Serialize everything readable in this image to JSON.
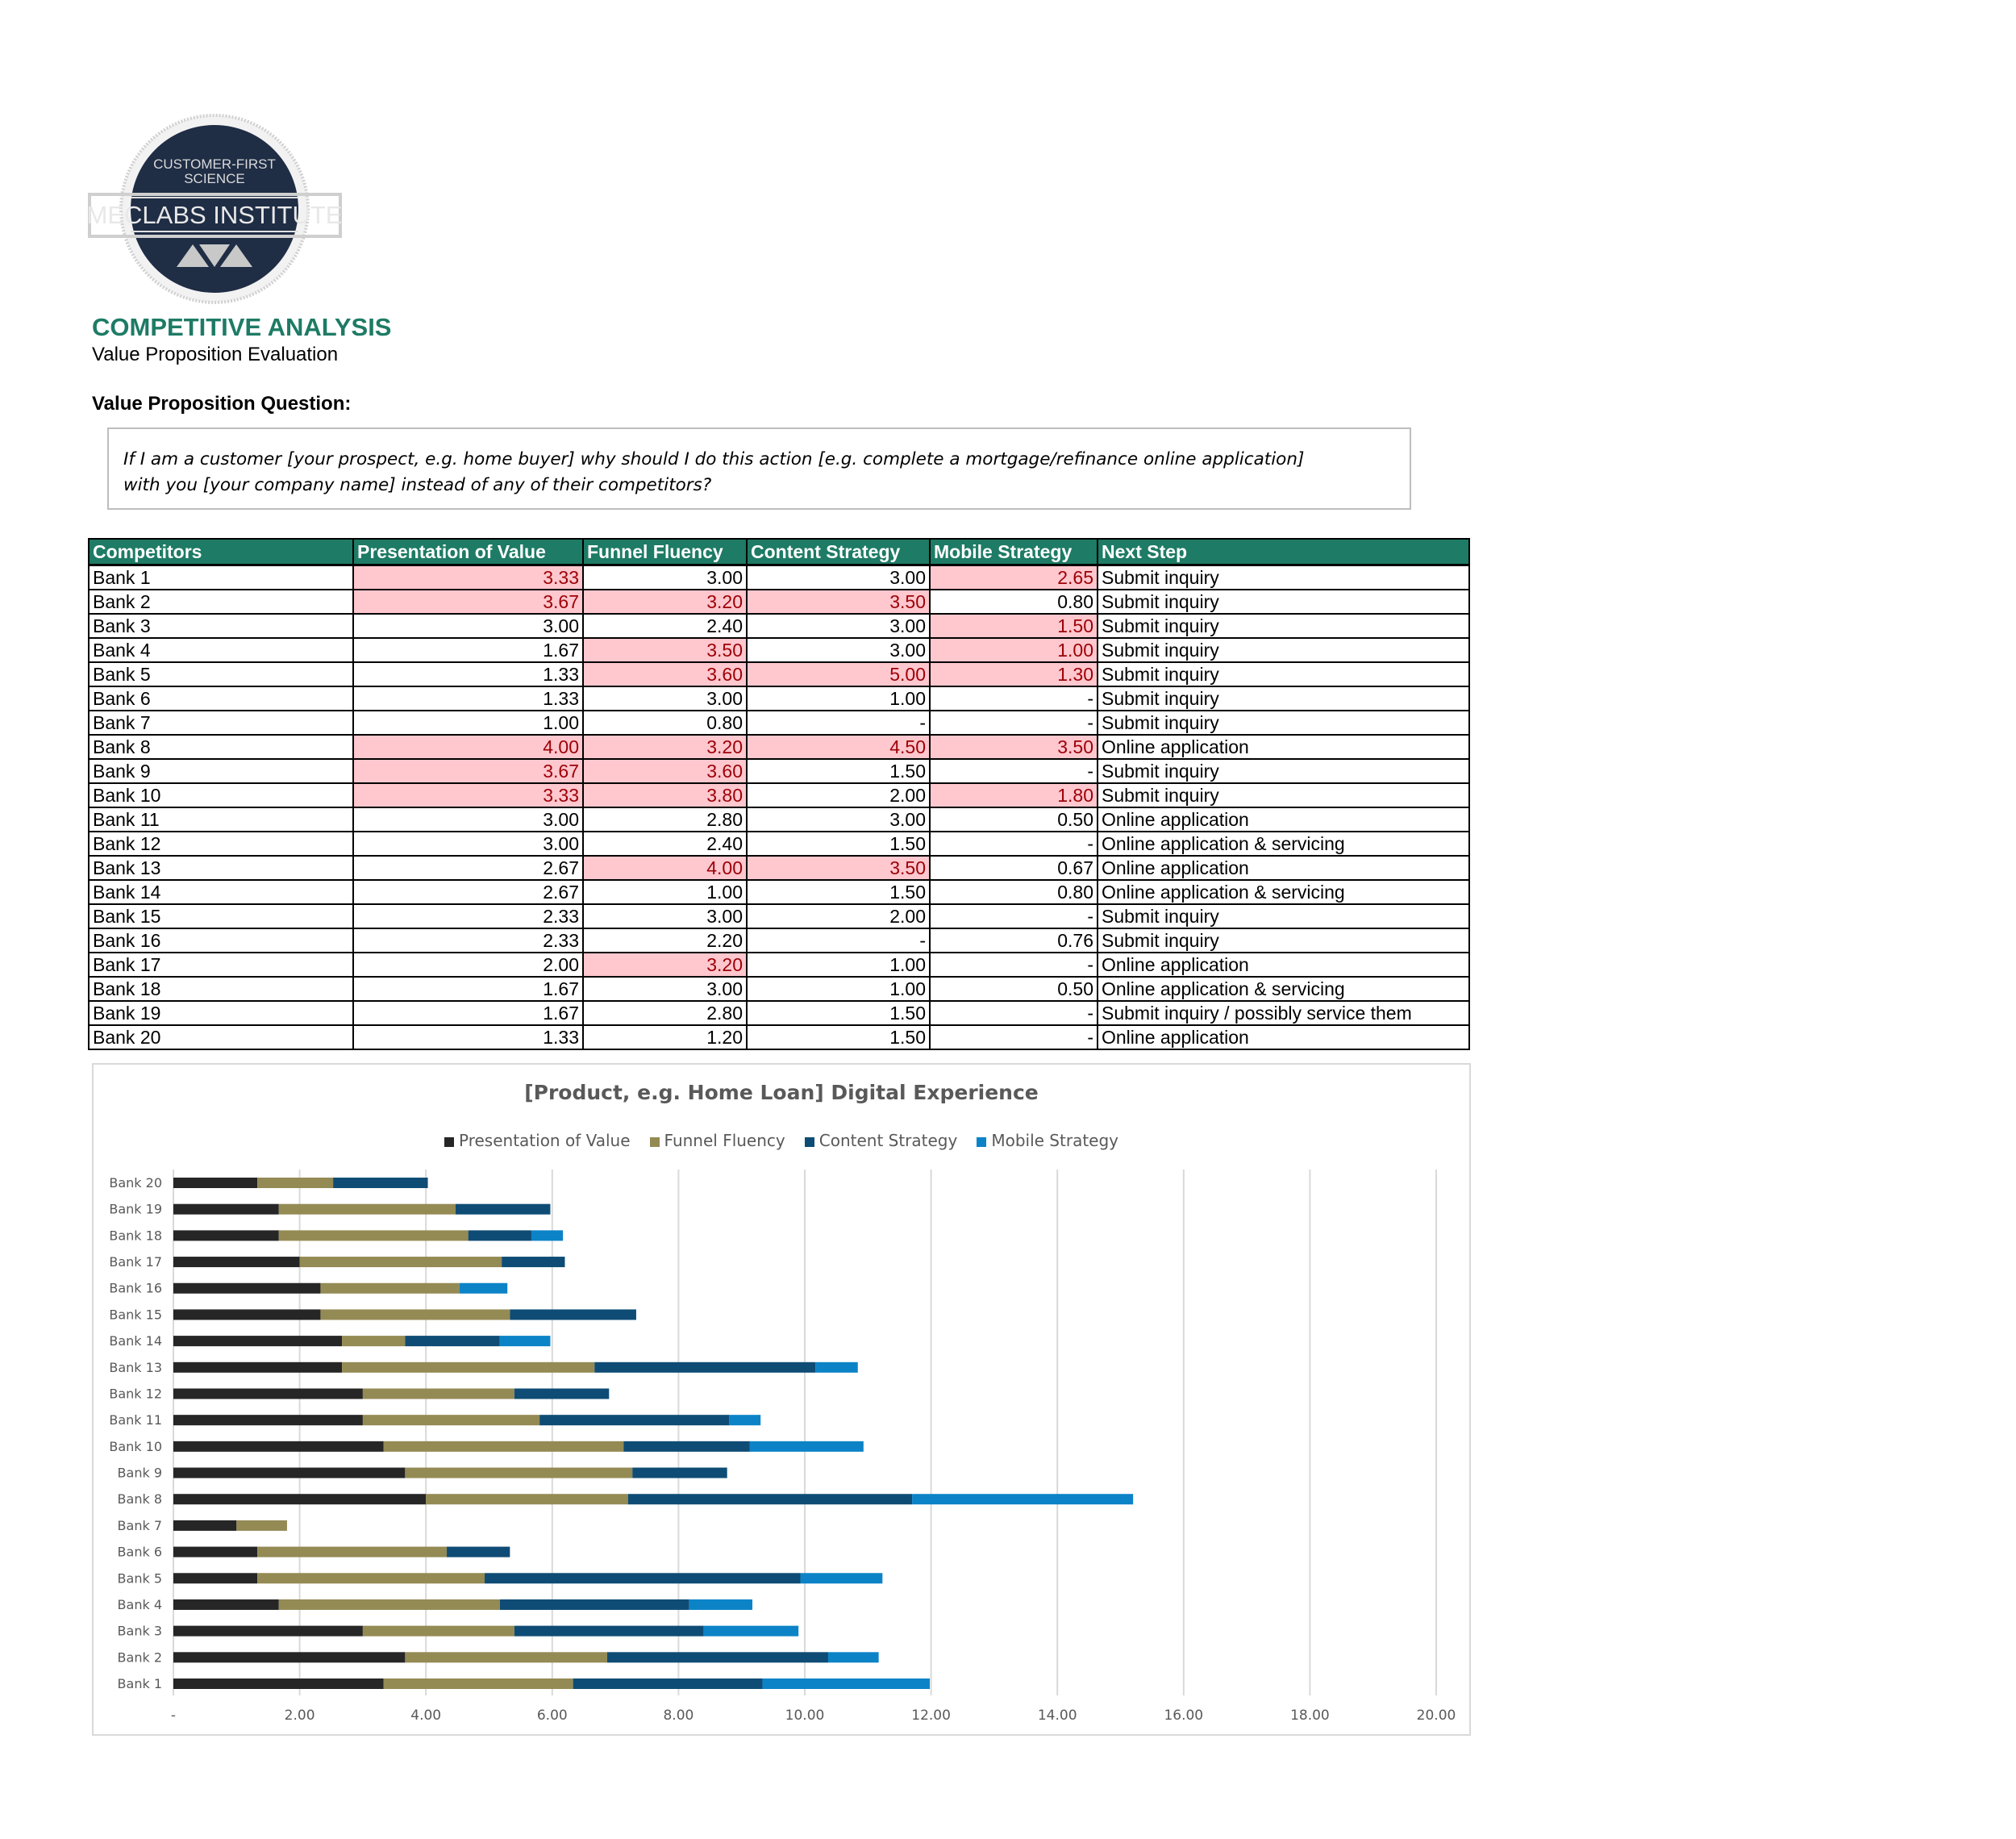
{
  "logo": {
    "line1": "CUSTOMER-FIRST",
    "line2": "SCIENCE",
    "name": "MECLABS INSTITUTE"
  },
  "header": {
    "title": "COMPETITIVE ANALYSIS",
    "subtitle": "Value Proposition Evaluation"
  },
  "question": {
    "label": "Value Proposition Question:",
    "line1": "If I am a customer [your prospect, e.g. home buyer] why should I do this action [e.g. complete a mortgage/refinance online application]",
    "line2": "with you [your company name] instead of any of their competitors?"
  },
  "table": {
    "columns": [
      "Competitors",
      "Presentation of Value",
      "Funnel Fluency",
      "Content Strategy",
      "Mobile Strategy",
      "Next Step"
    ],
    "highlight_color": "#FFC7CE",
    "highlight_text": "#9C0006",
    "header_color": "#1E7B65",
    "rows": [
      {
        "name": "Bank 1",
        "pv": "3.33",
        "ff": "3.00",
        "cs": "3.00",
        "ms": "2.65",
        "next": "Submit inquiry",
        "hl": [
          1,
          0,
          0,
          1
        ]
      },
      {
        "name": "Bank 2",
        "pv": "3.67",
        "ff": "3.20",
        "cs": "3.50",
        "ms": "0.80",
        "next": "Submit inquiry",
        "hl": [
          1,
          1,
          1,
          0
        ]
      },
      {
        "name": "Bank 3",
        "pv": "3.00",
        "ff": "2.40",
        "cs": "3.00",
        "ms": "1.50",
        "next": "Submit inquiry",
        "hl": [
          0,
          0,
          0,
          1
        ]
      },
      {
        "name": "Bank 4",
        "pv": "1.67",
        "ff": "3.50",
        "cs": "3.00",
        "ms": "1.00",
        "next": "Submit inquiry",
        "hl": [
          0,
          1,
          0,
          1
        ]
      },
      {
        "name": "Bank 5",
        "pv": "1.33",
        "ff": "3.60",
        "cs": "5.00",
        "ms": "1.30",
        "next": "Submit inquiry",
        "hl": [
          0,
          1,
          1,
          1
        ]
      },
      {
        "name": "Bank 6",
        "pv": "1.33",
        "ff": "3.00",
        "cs": "1.00",
        "ms": "-",
        "next": "Submit inquiry",
        "hl": [
          0,
          0,
          0,
          0
        ]
      },
      {
        "name": "Bank 7",
        "pv": "1.00",
        "ff": "0.80",
        "cs": "-",
        "ms": "-",
        "next": "Submit inquiry",
        "hl": [
          0,
          0,
          0,
          0
        ]
      },
      {
        "name": "Bank 8",
        "pv": "4.00",
        "ff": "3.20",
        "cs": "4.50",
        "ms": "3.50",
        "next": "Online application",
        "hl": [
          1,
          1,
          1,
          1
        ]
      },
      {
        "name": "Bank 9",
        "pv": "3.67",
        "ff": "3.60",
        "cs": "1.50",
        "ms": "-",
        "next": "Submit inquiry",
        "hl": [
          1,
          1,
          0,
          0
        ]
      },
      {
        "name": "Bank 10",
        "pv": "3.33",
        "ff": "3.80",
        "cs": "2.00",
        "ms": "1.80",
        "next": "Submit inquiry",
        "hl": [
          1,
          1,
          0,
          1
        ]
      },
      {
        "name": "Bank 11",
        "pv": "3.00",
        "ff": "2.80",
        "cs": "3.00",
        "ms": "0.50",
        "next": "Online application",
        "hl": [
          0,
          0,
          0,
          0
        ]
      },
      {
        "name": "Bank 12",
        "pv": "3.00",
        "ff": "2.40",
        "cs": "1.50",
        "ms": "-",
        "next": "Online application & servicing",
        "hl": [
          0,
          0,
          0,
          0
        ]
      },
      {
        "name": "Bank 13",
        "pv": "2.67",
        "ff": "4.00",
        "cs": "3.50",
        "ms": "0.67",
        "next": "Online application",
        "hl": [
          0,
          1,
          1,
          0
        ]
      },
      {
        "name": "Bank 14",
        "pv": "2.67",
        "ff": "1.00",
        "cs": "1.50",
        "ms": "0.80",
        "next": "Online application & servicing",
        "hl": [
          0,
          0,
          0,
          0
        ]
      },
      {
        "name": "Bank 15",
        "pv": "2.33",
        "ff": "3.00",
        "cs": "2.00",
        "ms": "-",
        "next": "Submit inquiry",
        "hl": [
          0,
          0,
          0,
          0
        ]
      },
      {
        "name": "Bank 16",
        "pv": "2.33",
        "ff": "2.20",
        "cs": "-",
        "ms": "0.76",
        "next": "Submit inquiry",
        "hl": [
          0,
          0,
          0,
          0
        ]
      },
      {
        "name": "Bank 17",
        "pv": "2.00",
        "ff": "3.20",
        "cs": "1.00",
        "ms": "-",
        "next": "Online application",
        "hl": [
          0,
          1,
          0,
          0
        ]
      },
      {
        "name": "Bank 18",
        "pv": "1.67",
        "ff": "3.00",
        "cs": "1.00",
        "ms": "0.50",
        "next": "Online application & servicing",
        "hl": [
          0,
          0,
          0,
          0
        ]
      },
      {
        "name": "Bank 19",
        "pv": "1.67",
        "ff": "2.80",
        "cs": "1.50",
        "ms": "-",
        "next": "Submit inquiry / possibly service them",
        "hl": [
          0,
          0,
          0,
          0
        ]
      },
      {
        "name": "Bank 20",
        "pv": "1.33",
        "ff": "1.20",
        "cs": "1.50",
        "ms": "-",
        "next": "Online application",
        "hl": [
          0,
          0,
          0,
          0
        ]
      }
    ]
  },
  "chart_data": {
    "type": "bar",
    "orientation": "horizontal",
    "stacked": true,
    "title": "[Product, e.g. Home Loan] Digital Experience",
    "legend_position": "top",
    "grid": true,
    "xlim": [
      0,
      20
    ],
    "x_ticks": [
      "-",
      "2.00",
      "4.00",
      "6.00",
      "8.00",
      "10.00",
      "12.00",
      "14.00",
      "16.00",
      "18.00",
      "20.00"
    ],
    "categories": [
      "Bank 1",
      "Bank 2",
      "Bank 3",
      "Bank 4",
      "Bank 5",
      "Bank 6",
      "Bank 7",
      "Bank 8",
      "Bank 9",
      "Bank 10",
      "Bank 11",
      "Bank 12",
      "Bank 13",
      "Bank 14",
      "Bank 15",
      "Bank 16",
      "Bank 17",
      "Bank 18",
      "Bank 19",
      "Bank 20"
    ],
    "series": [
      {
        "name": "Presentation of Value",
        "color": "#262626",
        "values": [
          3.33,
          3.67,
          3.0,
          1.67,
          1.33,
          1.33,
          1.0,
          4.0,
          3.67,
          3.33,
          3.0,
          3.0,
          2.67,
          2.67,
          2.33,
          2.33,
          2.0,
          1.67,
          1.67,
          1.33
        ]
      },
      {
        "name": "Funnel Fluency",
        "color": "#948A54",
        "values": [
          3.0,
          3.2,
          2.4,
          3.5,
          3.6,
          3.0,
          0.8,
          3.2,
          3.6,
          3.8,
          2.8,
          2.4,
          4.0,
          1.0,
          3.0,
          2.2,
          3.2,
          3.0,
          2.8,
          1.2
        ]
      },
      {
        "name": "Content Strategy",
        "color": "#0F4C75",
        "values": [
          3.0,
          3.5,
          3.0,
          3.0,
          5.0,
          1.0,
          0,
          4.5,
          1.5,
          2.0,
          3.0,
          1.5,
          3.5,
          1.5,
          2.0,
          0,
          1.0,
          1.0,
          1.5,
          1.5
        ]
      },
      {
        "name": "Mobile Strategy",
        "color": "#0C83C7",
        "values": [
          2.65,
          0.8,
          1.5,
          1.0,
          1.3,
          0,
          0,
          3.5,
          0,
          1.8,
          0.5,
          0,
          0.67,
          0.8,
          0,
          0.76,
          0,
          0.5,
          0,
          0
        ]
      }
    ]
  }
}
